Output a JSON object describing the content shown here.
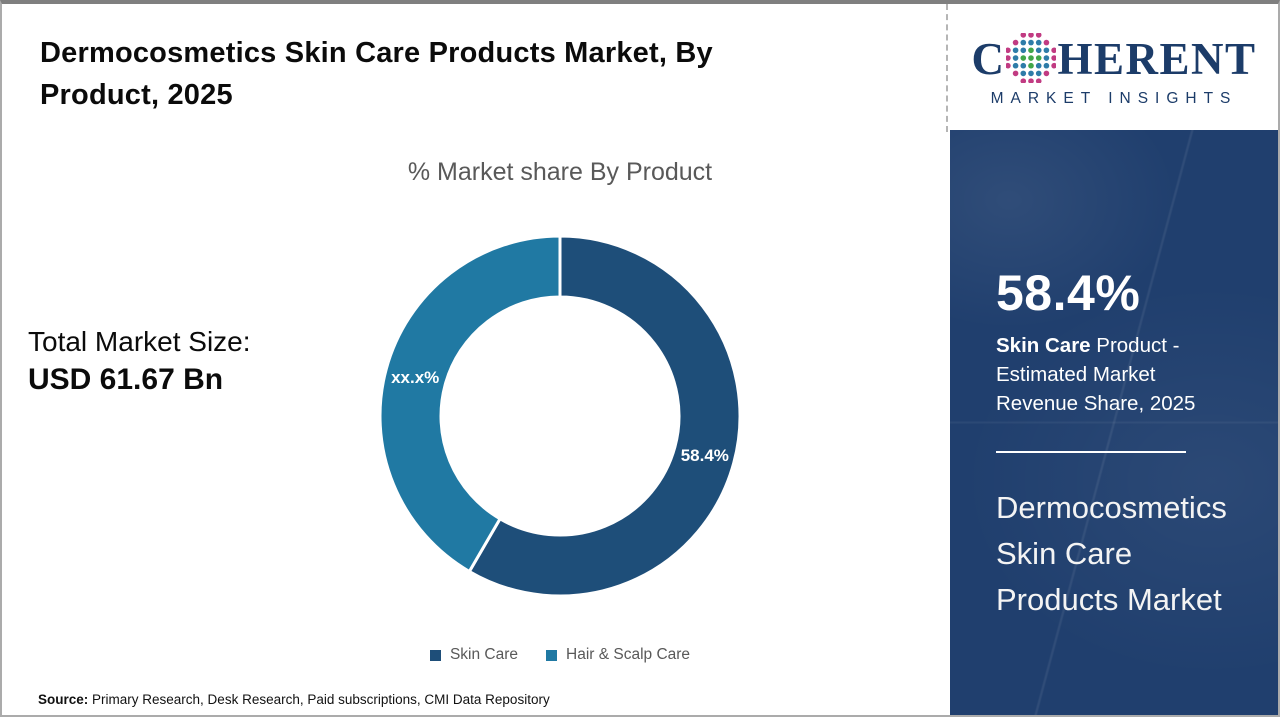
{
  "page": {
    "title": "Dermocosmetics Skin Care Products Market, By Product, 2025",
    "source_label": "Source:",
    "source_text": "Primary Research, Desk Research, Paid subscriptions, CMI Data Repository"
  },
  "logo": {
    "word_start": "C",
    "word_end": "HERENT",
    "subtitle": "MARKET INSIGHTS",
    "globe_icon": "dotted-globe",
    "colors": {
      "navy": "#1c3c69",
      "dot_green": "#41a648",
      "dot_blue": "#2e7ca8",
      "dot_magenta": "#c13b82"
    }
  },
  "market_size": {
    "label": "Total Market Size:",
    "value": "USD 61.67 Bn"
  },
  "chart_data": {
    "type": "pie",
    "donut": true,
    "title": "% Market share By Product",
    "legend_position": "bottom",
    "start_angle_deg": 0,
    "series": [
      {
        "name": "Skin Care",
        "value": 58.4,
        "label": "58.4%",
        "color": "#1e4e79"
      },
      {
        "name": "Hair & Scalp Care",
        "value": 41.6,
        "label": "xx.x%",
        "color": "#2079a3"
      }
    ]
  },
  "sidebar": {
    "stat_value": "58.4%",
    "stat_desc_bold": "Skin Care",
    "stat_desc_rest": " Product - Estimated Market Revenue Share, 2025",
    "report_name": "Dermocosmetics Skin Care Products Market",
    "panel_color": "#203f6e"
  },
  "colors": {
    "text_black": "#0b0b0b",
    "text_gray": "#595959",
    "frame_gray_top": "#7f7f7f",
    "frame_gray_sides": "#ababab",
    "label_white": "#ffffff"
  }
}
